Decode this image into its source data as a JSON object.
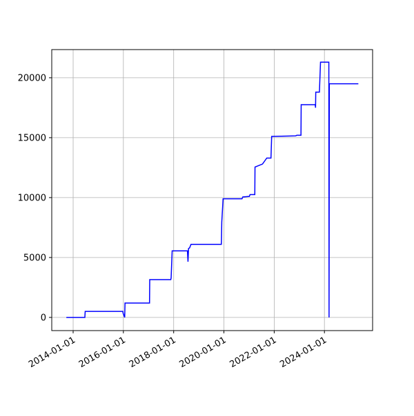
{
  "chart_data": {
    "type": "line",
    "x": [
      "2013-09-24",
      "2014-06-20",
      "2014-06-25",
      "2015-12-24",
      "2015-12-28",
      "2016-01-20",
      "2016-01-25",
      "2017-01-15",
      "2017-01-18",
      "2017-11-20",
      "2017-11-25",
      "2017-12-10",
      "2018-07-20",
      "2018-07-28",
      "2018-08-05",
      "2018-08-20",
      "2018-09-10",
      "2019-11-25",
      "2019-12-01",
      "2019-12-20",
      "2020-09-20",
      "2020-10-01",
      "2021-01-05",
      "2021-01-15",
      "2021-03-25",
      "2021-03-28",
      "2021-05-10",
      "2021-07-15",
      "2021-09-15",
      "2021-11-15",
      "2021-11-25",
      "2022-11-10",
      "2022-11-25",
      "2023-01-25",
      "2023-01-28",
      "2023-08-20",
      "2023-08-25",
      "2023-08-28",
      "2023-10-20",
      "2023-11-05",
      "2024-03-05",
      "2024-03-08",
      "2024-03-12",
      "2025-05-08"
    ],
    "series": [
      {
        "color": "#0000ff",
        "values": [
          0,
          0,
          500,
          500,
          350,
          0,
          1200,
          1200,
          3150,
          3150,
          3300,
          5550,
          5550,
          4650,
          5750,
          5800,
          6100,
          6100,
          7950,
          9900,
          9900,
          10050,
          10100,
          10250,
          10250,
          12550,
          12650,
          12800,
          13300,
          13300,
          15100,
          15150,
          15200,
          15200,
          17750,
          17750,
          17500,
          18800,
          18800,
          21300,
          21300,
          0,
          19500,
          19500
        ]
      }
    ],
    "xlim": [
      "2013-02-24",
      "2025-12-01"
    ],
    "xticks": [
      "2014-01-01",
      "2016-01-01",
      "2018-01-01",
      "2020-01-01",
      "2022-01-01",
      "2024-01-01"
    ],
    "ylim": [
      -1100,
      22350
    ],
    "yticks": [
      0,
      5000,
      10000,
      15000,
      20000
    ],
    "grid": true
  }
}
